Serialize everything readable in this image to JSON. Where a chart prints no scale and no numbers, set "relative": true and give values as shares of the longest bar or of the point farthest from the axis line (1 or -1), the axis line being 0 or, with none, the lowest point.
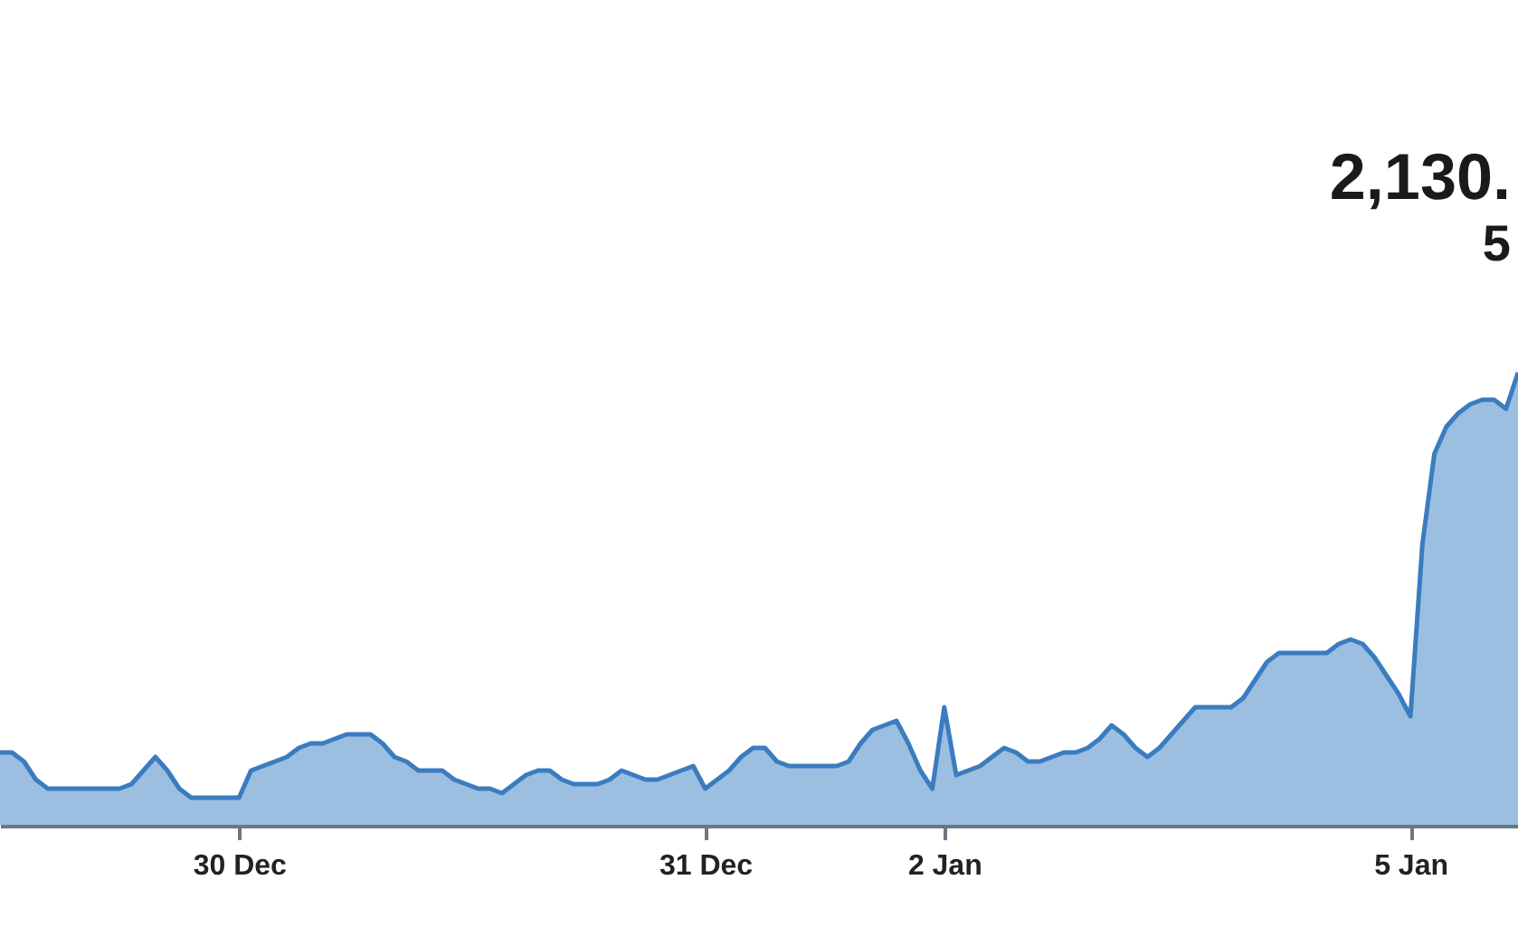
{
  "chart_data": {
    "type": "area",
    "relative": true,
    "categories": [
      null,
      null,
      null,
      null,
      null,
      null,
      null,
      null,
      null,
      null,
      null,
      null,
      null,
      null,
      null,
      null,
      null,
      null,
      null,
      null,
      "30 Dec",
      null,
      null,
      null,
      null,
      null,
      null,
      null,
      null,
      null,
      null,
      null,
      null,
      null,
      null,
      null,
      null,
      null,
      null,
      null,
      null,
      null,
      null,
      null,
      null,
      null,
      null,
      null,
      null,
      null,
      null,
      null,
      null,
      null,
      null,
      null,
      null,
      null,
      null,
      "31 Dec",
      null,
      null,
      null,
      null,
      null,
      null,
      null,
      null,
      null,
      null,
      null,
      null,
      null,
      null,
      null,
      null,
      null,
      null,
      null,
      "2 Jan",
      null,
      null,
      null,
      null,
      null,
      null,
      null,
      null,
      null,
      null,
      null,
      null,
      null,
      null,
      null,
      null,
      null,
      null,
      null,
      null,
      null,
      null,
      null,
      null,
      null,
      null,
      null,
      null,
      null,
      null,
      null,
      null,
      null,
      null,
      null,
      null,
      null,
      null,
      "5 Jan",
      null,
      null,
      null,
      null,
      null,
      null,
      null,
      null,
      null
    ],
    "series": [
      {
        "color": "#3a7cc0",
        "values": [
          0.16,
          0.16,
          0.14,
          0.1,
          0.08,
          0.08,
          0.08,
          0.08,
          0.08,
          0.08,
          0.08,
          0.09,
          0.12,
          0.15,
          0.12,
          0.08,
          0.06,
          0.06,
          0.06,
          0.06,
          0.06,
          0.12,
          0.13,
          0.14,
          0.15,
          0.17,
          0.18,
          0.18,
          0.19,
          0.2,
          0.2,
          0.2,
          0.18,
          0.15,
          0.14,
          0.12,
          0.12,
          0.12,
          0.1,
          0.09,
          0.08,
          0.08,
          0.07,
          0.09,
          0.11,
          0.12,
          0.12,
          0.1,
          0.09,
          0.09,
          0.09,
          0.1,
          0.12,
          0.11,
          0.1,
          0.1,
          0.11,
          0.12,
          0.13,
          0.08,
          0.1,
          0.12,
          0.15,
          0.17,
          0.17,
          0.14,
          0.13,
          0.13,
          0.13,
          0.13,
          0.13,
          0.14,
          0.18,
          0.21,
          0.22,
          0.23,
          0.18,
          0.12,
          0.08,
          0.26,
          0.11,
          0.12,
          0.13,
          0.15,
          0.17,
          0.16,
          0.14,
          0.14,
          0.15,
          0.16,
          0.16,
          0.17,
          0.19,
          0.22,
          0.2,
          0.17,
          0.15,
          0.17,
          0.2,
          0.23,
          0.26,
          0.26,
          0.26,
          0.26,
          0.28,
          0.32,
          0.36,
          0.38,
          0.38,
          0.38,
          0.38,
          0.38,
          0.4,
          0.41,
          0.4,
          0.37,
          0.33,
          0.29,
          0.24,
          0.62,
          0.82,
          0.88,
          0.91,
          0.93,
          0.94,
          0.94,
          0.92,
          1.0
        ]
      }
    ],
    "annotations": [
      "2,130.",
      "5"
    ]
  }
}
